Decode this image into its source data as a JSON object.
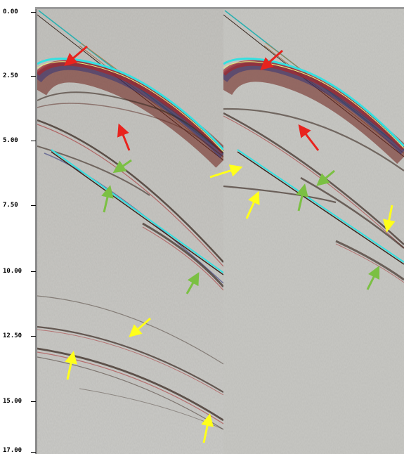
{
  "axis": {
    "ticks": [
      "0.00",
      "2.50",
      "5.00",
      "7.50",
      "10.00",
      "12.50",
      "15.00",
      "17.00"
    ]
  },
  "colors": {
    "background": "#c8c8c4",
    "red_arrow": "#e8231e",
    "green_arrow": "#7bc043",
    "yellow_arrow": "#ffff1a",
    "reflector_cyan": "#35e0e0",
    "reflector_dark": "#3a2a22",
    "direct_wave": "#b07a4a"
  },
  "panels": [
    "left-gather",
    "right-gather"
  ]
}
